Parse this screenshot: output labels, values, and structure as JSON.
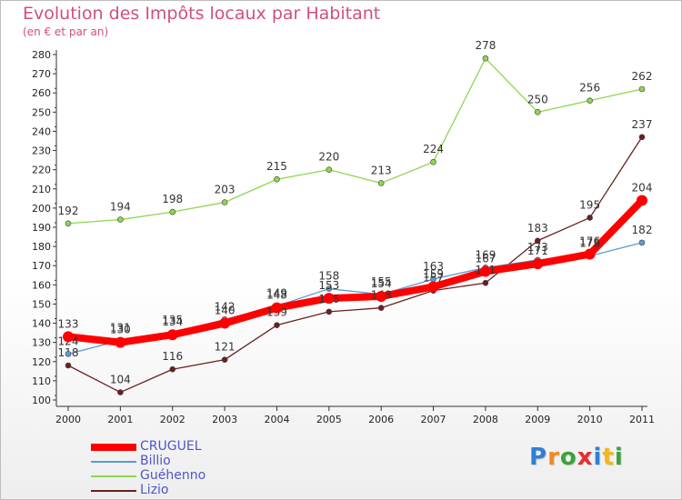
{
  "title": "Evolution des Impôts locaux par Habitant",
  "subtitle": "(en € et par an)",
  "brand": "Proxiti",
  "chart_data": {
    "type": "line",
    "title": "Evolution des Impôts locaux par Habitant",
    "ylabel": "(en € et par an)",
    "xlabel": "",
    "x": [
      "2000",
      "2001",
      "2002",
      "2003",
      "2004",
      "2005",
      "2006",
      "2007",
      "2008",
      "2009",
      "2010",
      "2011"
    ],
    "ylim": [
      100,
      280
    ],
    "yticks": [
      100,
      110,
      120,
      130,
      140,
      150,
      160,
      170,
      180,
      190,
      200,
      210,
      220,
      230,
      240,
      250,
      260,
      270,
      280
    ],
    "grid": false,
    "legend_position": "bottom-left",
    "series": [
      {
        "name": "CRUGUEL",
        "color": "#ff0000",
        "values": [
          133,
          130,
          134,
          140,
          148,
          153,
          154,
          159,
          167,
          171,
          176,
          204
        ]
      },
      {
        "name": "Billio",
        "color": "#5a9bd5",
        "values": [
          124,
          131,
          135,
          142,
          149,
          158,
          155,
          163,
          169,
          173,
          175,
          182
        ]
      },
      {
        "name": "Guéhenno",
        "color": "#8ed64f",
        "values": [
          192,
          194,
          198,
          203,
          215,
          220,
          213,
          224,
          278,
          250,
          256,
          262
        ]
      },
      {
        "name": "Lizio",
        "color": "#6b1f1f",
        "values": [
          118,
          104,
          116,
          121,
          139,
          146,
          148,
          157,
          161,
          183,
          195,
          237
        ]
      }
    ]
  },
  "colors": {
    "title": "#d0507a",
    "legend_text": "#4d56c7",
    "axis": "#333333"
  }
}
